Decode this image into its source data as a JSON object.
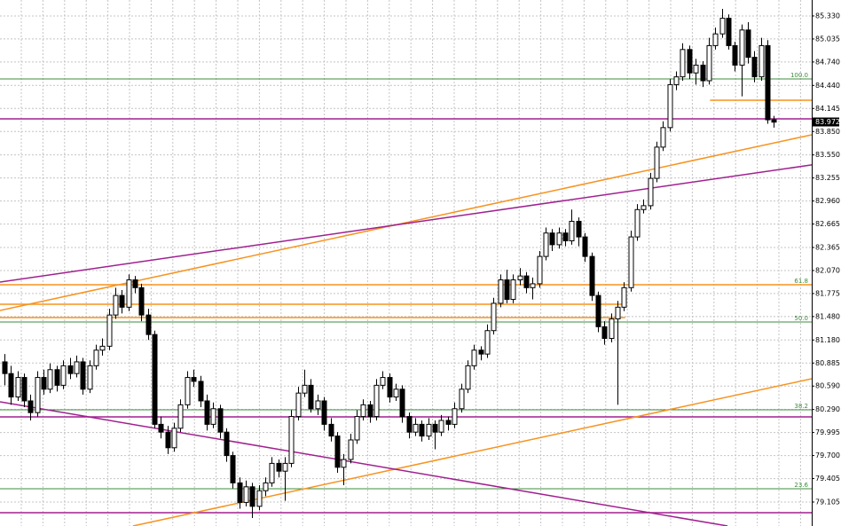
{
  "chart_data": {
    "type": "candlestick",
    "xlim": [
      -0.68,
      123.8
    ],
    "ylim": [
      78.798,
      85.534
    ],
    "yticks": [
      {
        "value": 85.33,
        "label": "85.330"
      },
      85.035,
      {
        "value": 84.74,
        "label": "84.740"
      },
      {
        "value": 84.44,
        "label": "84.440"
      },
      84.145,
      {
        "value": 83.85,
        "label": "83.850"
      },
      {
        "value": 83.55,
        "label": "83.550"
      },
      83.255,
      {
        "value": 82.96,
        "label": "82.960"
      },
      82.665,
      82.365,
      {
        "value": 82.07,
        "label": "82.070"
      },
      81.775,
      {
        "value": 81.48,
        "label": "81.480"
      },
      {
        "value": 81.18,
        "label": "81.180"
      },
      80.885,
      {
        "value": 80.59,
        "label": "80.590"
      },
      {
        "value": 80.29,
        "label": "80.290"
      },
      79.995,
      {
        "value": 79.7,
        "label": "79.700"
      },
      79.405,
      79.105
    ],
    "grid": true,
    "up_color": "#ffffff",
    "down_color": "#000000",
    "last_price": 83.972,
    "ohlc": [
      [
        80.9,
        81.0,
        80.6,
        80.75
      ],
      [
        80.75,
        80.85,
        80.35,
        80.45
      ],
      [
        80.45,
        80.78,
        80.4,
        80.7
      ],
      [
        80.7,
        80.75,
        80.32,
        80.4
      ],
      [
        80.4,
        80.48,
        80.15,
        80.25
      ],
      [
        80.25,
        80.78,
        80.2,
        80.7
      ],
      [
        80.7,
        80.8,
        80.48,
        80.55
      ],
      [
        80.55,
        80.88,
        80.5,
        80.8
      ],
      [
        80.8,
        80.85,
        80.52,
        80.6
      ],
      [
        80.6,
        80.92,
        80.55,
        80.85
      ],
      [
        80.85,
        80.95,
        80.68,
        80.75
      ],
      [
        80.75,
        80.98,
        80.7,
        80.9
      ],
      [
        80.9,
        80.95,
        80.48,
        80.55
      ],
      [
        80.55,
        80.92,
        80.5,
        80.85
      ],
      [
        80.85,
        81.12,
        80.8,
        81.05
      ],
      [
        81.05,
        81.2,
        80.98,
        81.1
      ],
      [
        81.1,
        81.58,
        81.05,
        81.5
      ],
      [
        81.5,
        81.85,
        81.45,
        81.75
      ],
      [
        81.75,
        81.82,
        81.52,
        81.6
      ],
      [
        81.6,
        82.02,
        81.55,
        81.95
      ],
      [
        81.95,
        82.0,
        81.78,
        81.85
      ],
      [
        81.85,
        81.9,
        81.42,
        81.5
      ],
      [
        81.5,
        81.58,
        81.18,
        81.25
      ],
      [
        81.25,
        81.3,
        80.05,
        80.1
      ],
      [
        80.1,
        80.2,
        79.92,
        80.0
      ],
      [
        80.0,
        80.08,
        79.72,
        79.8
      ],
      [
        79.8,
        80.12,
        79.75,
        80.05
      ],
      [
        80.05,
        80.42,
        80.0,
        80.35
      ],
      [
        80.35,
        80.78,
        80.3,
        80.7
      ],
      [
        80.7,
        80.8,
        80.58,
        80.65
      ],
      [
        80.65,
        80.72,
        80.32,
        80.4
      ],
      [
        80.4,
        80.48,
        80.02,
        80.1
      ],
      [
        80.1,
        80.38,
        80.05,
        80.3
      ],
      [
        80.3,
        80.35,
        79.92,
        80.0
      ],
      [
        80.0,
        80.05,
        79.62,
        79.7
      ],
      [
        79.7,
        79.75,
        79.28,
        79.35
      ],
      [
        79.35,
        79.42,
        79.02,
        79.1
      ],
      [
        79.1,
        79.38,
        79.05,
        79.3
      ],
      [
        79.3,
        79.35,
        78.9,
        79.05
      ],
      [
        79.05,
        79.32,
        79.0,
        79.25
      ],
      [
        79.25,
        79.42,
        79.18,
        79.35
      ],
      [
        79.35,
        79.68,
        79.3,
        79.6
      ],
      [
        79.6,
        79.65,
        79.42,
        79.5
      ],
      [
        79.5,
        79.68,
        79.12,
        79.6
      ],
      [
        79.6,
        80.28,
        79.55,
        80.2
      ],
      [
        80.2,
        80.58,
        80.15,
        80.5
      ],
      [
        80.5,
        80.8,
        80.45,
        80.6
      ],
      [
        80.6,
        80.68,
        80.25,
        80.3
      ],
      [
        80.3,
        80.48,
        80.22,
        80.4
      ],
      [
        80.4,
        80.45,
        80.02,
        80.1
      ],
      [
        80.1,
        80.18,
        79.88,
        79.95
      ],
      [
        79.95,
        80.0,
        79.48,
        79.55
      ],
      [
        79.55,
        79.72,
        79.32,
        79.65
      ],
      [
        79.65,
        79.98,
        79.6,
        79.9
      ],
      [
        79.9,
        80.28,
        79.85,
        80.2
      ],
      [
        80.2,
        80.42,
        80.15,
        80.35
      ],
      [
        80.35,
        80.4,
        80.12,
        80.2
      ],
      [
        80.2,
        80.68,
        80.15,
        80.6
      ],
      [
        80.6,
        80.78,
        80.55,
        80.7
      ],
      [
        80.7,
        80.75,
        80.38,
        80.45
      ],
      [
        80.45,
        80.62,
        80.4,
        80.55
      ],
      [
        80.55,
        80.6,
        80.12,
        80.2
      ],
      [
        80.2,
        80.25,
        79.92,
        80.0
      ],
      [
        80.0,
        80.18,
        79.95,
        80.1
      ],
      [
        80.1,
        80.15,
        79.88,
        79.95
      ],
      [
        79.95,
        80.18,
        79.9,
        80.1
      ],
      [
        80.1,
        80.15,
        79.78,
        80.0
      ],
      [
        80.0,
        80.22,
        79.95,
        80.15
      ],
      [
        80.15,
        80.2,
        80.02,
        80.1
      ],
      [
        80.1,
        80.38,
        80.05,
        80.3
      ],
      [
        80.3,
        80.62,
        80.25,
        80.55
      ],
      [
        80.55,
        80.92,
        80.5,
        80.85
      ],
      [
        80.85,
        81.12,
        80.8,
        81.05
      ],
      [
        81.05,
        81.1,
        80.92,
        81.0
      ],
      [
        81.0,
        81.38,
        80.95,
        81.3
      ],
      [
        81.3,
        81.72,
        81.25,
        81.65
      ],
      [
        81.65,
        82.02,
        81.6,
        81.95
      ],
      [
        81.95,
        82.08,
        81.65,
        81.7
      ],
      [
        81.7,
        82.02,
        81.65,
        81.95
      ],
      [
        81.95,
        82.1,
        81.88,
        82.0
      ],
      [
        82.0,
        82.05,
        81.78,
        81.85
      ],
      [
        81.85,
        81.98,
        81.7,
        81.9
      ],
      [
        81.9,
        82.32,
        81.85,
        82.25
      ],
      [
        82.25,
        82.62,
        82.2,
        82.55
      ],
      [
        82.55,
        82.6,
        82.32,
        82.4
      ],
      [
        82.4,
        82.62,
        82.35,
        82.55
      ],
      [
        82.55,
        82.6,
        82.38,
        82.45
      ],
      [
        82.45,
        82.85,
        82.4,
        82.7
      ],
      [
        82.7,
        82.75,
        82.38,
        82.5
      ],
      [
        82.5,
        82.55,
        82.18,
        82.25
      ],
      [
        82.25,
        82.3,
        81.68,
        81.75
      ],
      [
        81.75,
        81.8,
        81.28,
        81.35
      ],
      [
        81.35,
        81.42,
        81.12,
        81.2
      ],
      [
        81.2,
        81.52,
        81.15,
        81.45
      ],
      [
        81.45,
        81.68,
        80.35,
        81.6
      ],
      [
        81.6,
        81.92,
        81.55,
        81.85
      ],
      [
        81.85,
        82.58,
        81.8,
        82.5
      ],
      [
        82.5,
        82.92,
        82.45,
        82.85
      ],
      [
        82.85,
        82.98,
        82.8,
        82.9
      ],
      [
        82.9,
        83.32,
        82.85,
        83.25
      ],
      [
        83.25,
        83.72,
        83.2,
        83.65
      ],
      [
        83.65,
        83.98,
        83.6,
        83.9
      ],
      [
        83.9,
        84.52,
        83.85,
        84.45
      ],
      [
        84.45,
        84.62,
        84.38,
        84.55
      ],
      [
        84.55,
        84.98,
        84.5,
        84.9
      ],
      [
        84.9,
        84.95,
        84.52,
        84.6
      ],
      [
        84.6,
        84.78,
        84.45,
        84.7
      ],
      [
        84.7,
        84.75,
        84.42,
        84.5
      ],
      [
        84.5,
        85.05,
        84.45,
        84.95
      ],
      [
        84.95,
        85.18,
        84.9,
        85.1
      ],
      [
        85.1,
        85.42,
        85.05,
        85.3
      ],
      [
        85.3,
        85.35,
        84.9,
        84.95
      ],
      [
        84.95,
        85.0,
        84.62,
        84.7
      ],
      [
        84.7,
        85.22,
        84.3,
        85.15
      ],
      [
        85.15,
        85.25,
        84.72,
        84.8
      ],
      [
        84.8,
        84.88,
        84.48,
        84.55
      ],
      [
        84.55,
        85.05,
        84.5,
        84.95
      ],
      [
        84.95,
        85.02,
        83.95,
        84.0
      ],
      [
        84.0,
        84.05,
        83.9,
        83.97
      ]
    ],
    "hlines": [
      {
        "value": 84.523,
        "color": "#3c8c3c",
        "label": "100.0"
      },
      {
        "value": 81.888,
        "color": "#3c8c3c",
        "label": "61.8"
      },
      {
        "value": 81.41,
        "color": "#3c8c3c",
        "label": "50.0"
      },
      {
        "value": 80.286,
        "color": "#3c8c3c",
        "label": "38.2"
      },
      {
        "value": 79.275,
        "color": "#3c8c3c",
        "label": "23.6"
      },
      {
        "value": 84.012,
        "color": "#a0208f"
      },
      {
        "value": 80.195,
        "color": "#a0208f"
      },
      {
        "value": 78.969,
        "color": "#a0208f"
      }
    ],
    "trendlines": [
      {
        "x": [
          -0.68,
          123.8
        ],
        "y": [
          81.888,
          81.888
        ],
        "color": "#f7931e"
      },
      {
        "x": [
          -0.68,
          95.2
        ],
        "y": [
          81.638,
          81.638
        ],
        "color": "#f7931e"
      },
      {
        "x": [
          -0.68,
          95.2
        ],
        "y": [
          81.468,
          81.468
        ],
        "color": "#f7931e"
      },
      {
        "x": [
          108.2,
          123.8
        ],
        "y": [
          84.251,
          84.251
        ],
        "color": "#f7931e"
      },
      {
        "x": [
          -0.68,
          123.8
        ],
        "y": [
          81.558,
          83.808
        ],
        "color": "#f7931e"
      },
      {
        "x": [
          19.7,
          123.8
        ],
        "y": [
          78.798,
          80.684
        ],
        "color": "#f7931e"
      },
      {
        "x": [
          -0.68,
          123.8
        ],
        "y": [
          81.922,
          83.422
        ],
        "color": "#a0208f"
      },
      {
        "x": [
          -0.68,
          110.9
        ],
        "y": [
          80.389,
          78.798
        ],
        "color": "#a0208f"
      }
    ]
  }
}
